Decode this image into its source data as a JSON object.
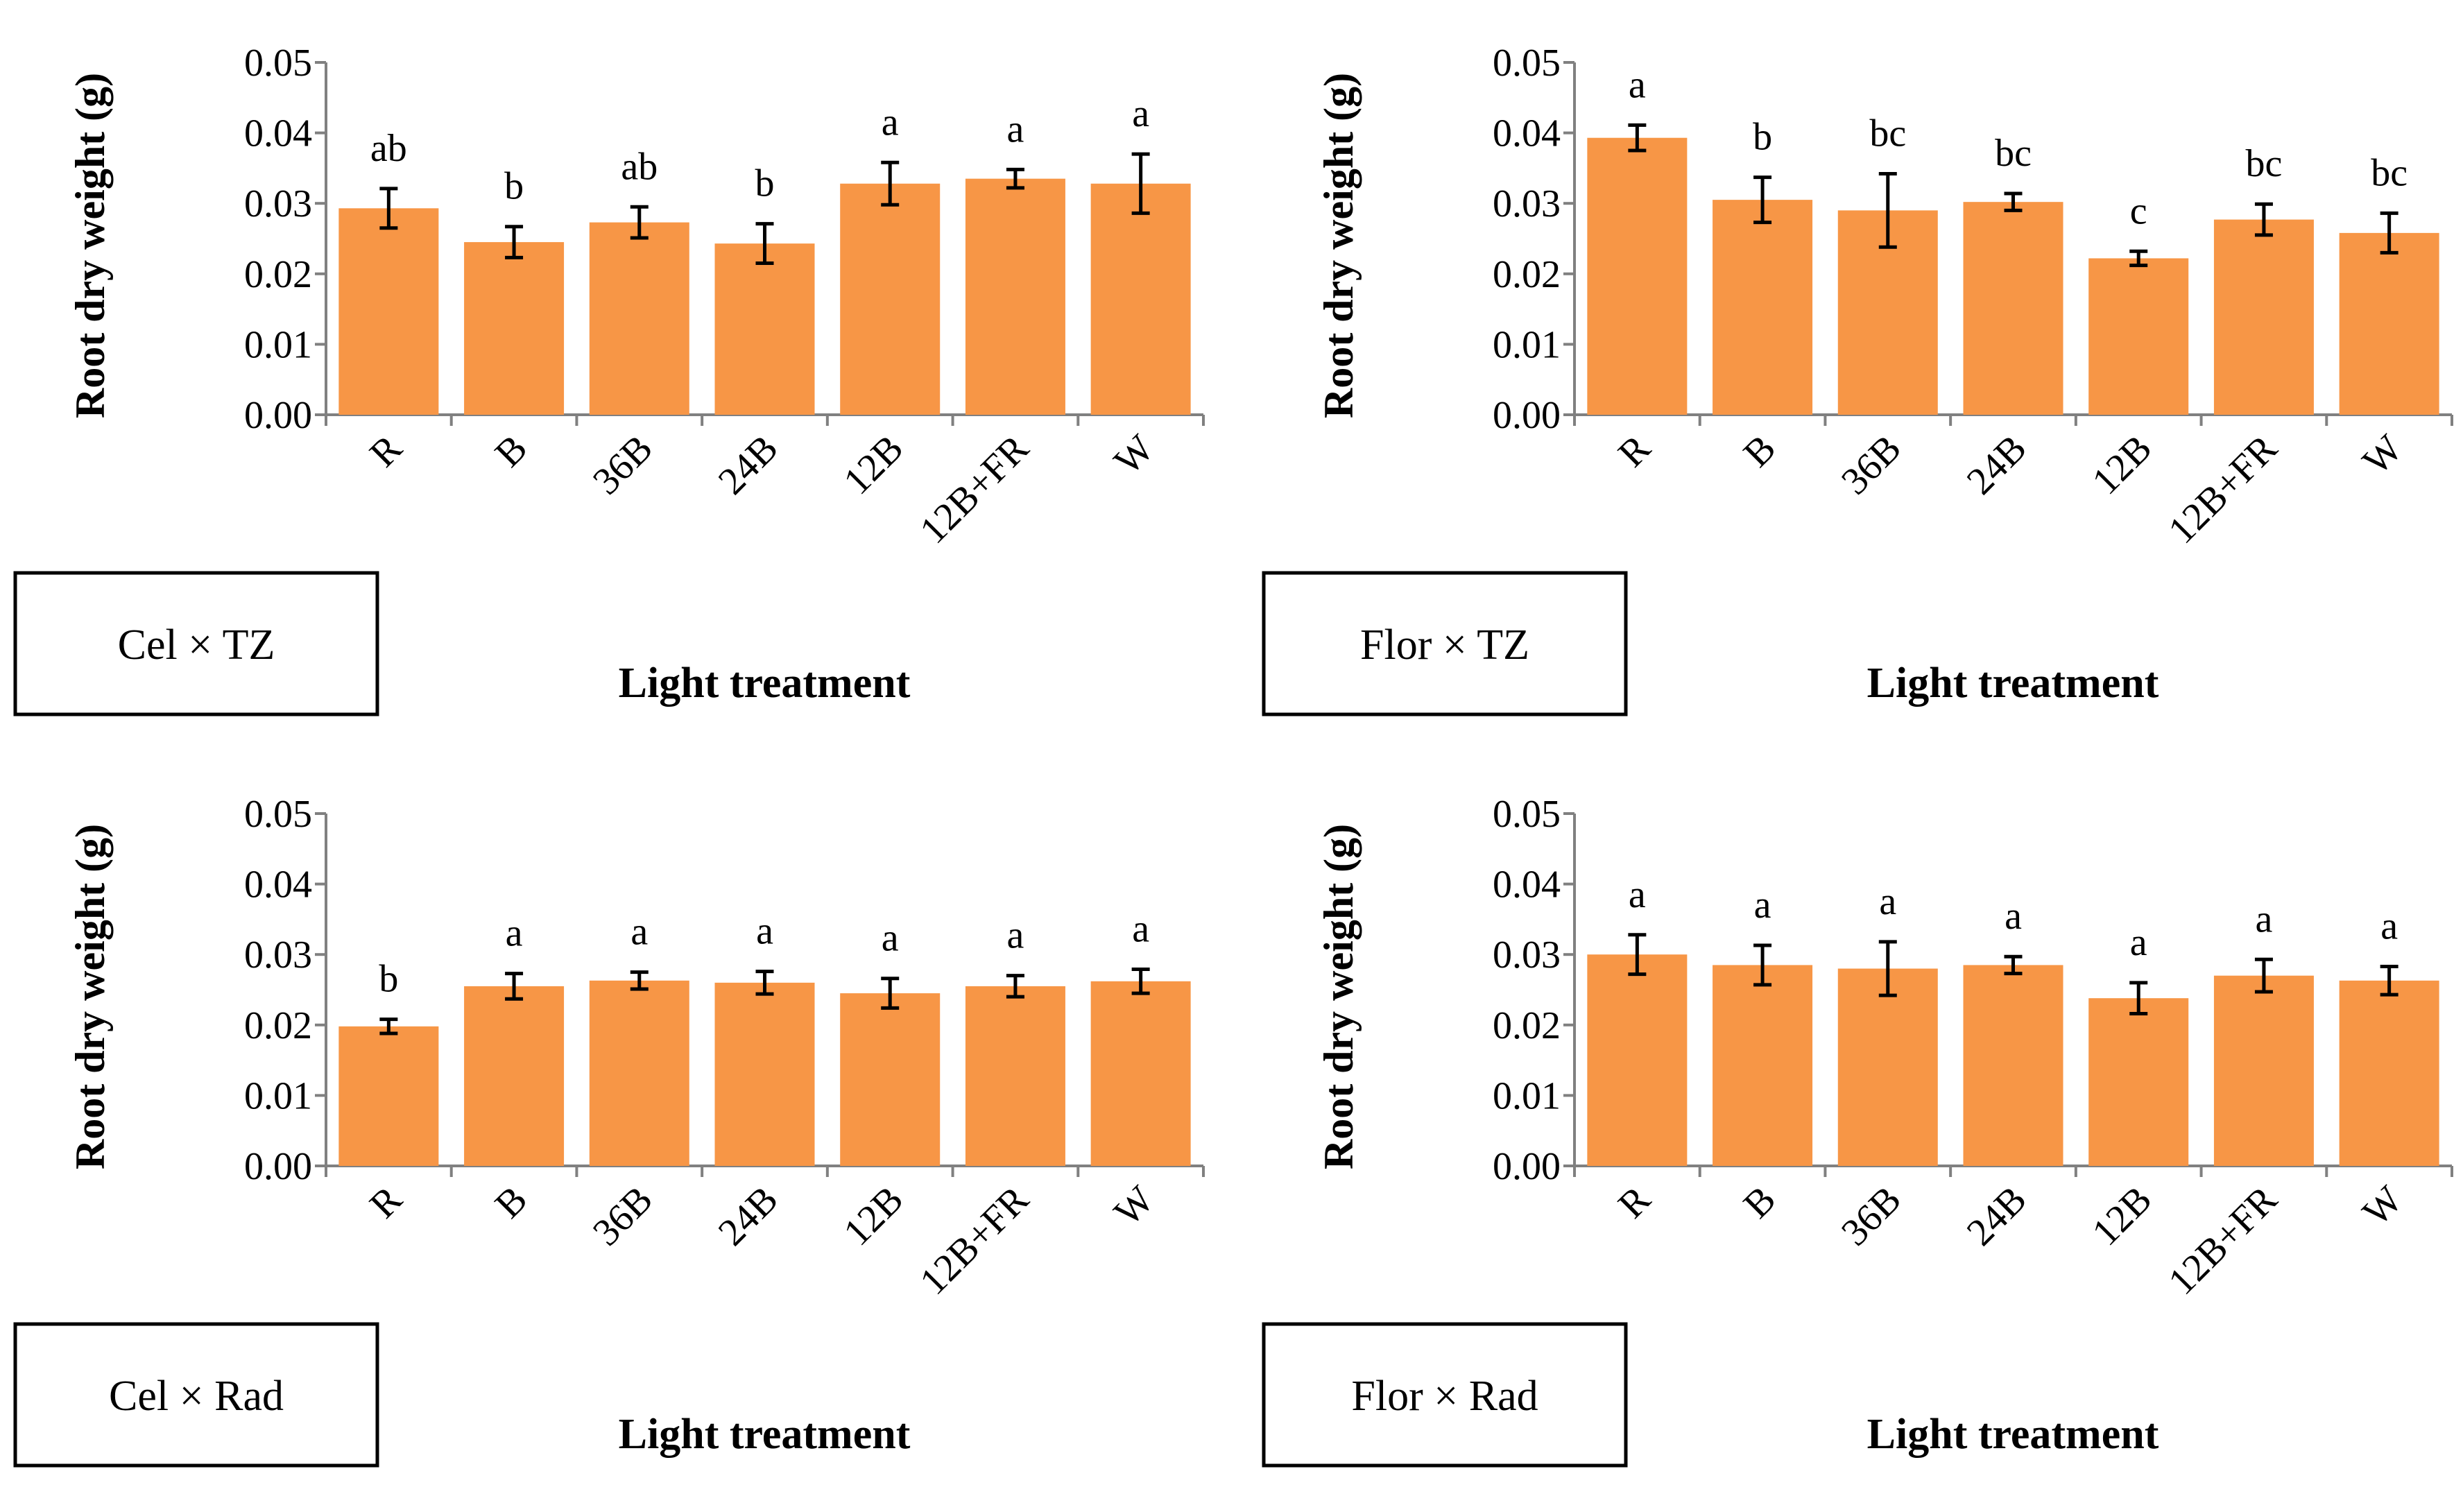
{
  "colors": {
    "bar": "#F79646",
    "axis": "#808080",
    "error_bar": "#000000",
    "text": "#000000"
  },
  "chart_data": [
    {
      "type": "bar",
      "panel_label": "Cel × TZ",
      "xlabel": "Light treatment",
      "ylabel": "Root dry weight (g)",
      "ylim": [
        0,
        0.05
      ],
      "yticks": [
        "0.00",
        "0.01",
        "0.02",
        "0.03",
        "0.04",
        "0.05"
      ],
      "categories": [
        "R",
        "B",
        "36B",
        "24B",
        "12B",
        "12B+FR",
        "W"
      ],
      "values": [
        0.0293,
        0.0245,
        0.0273,
        0.0243,
        0.0328,
        0.0335,
        0.0328
      ],
      "errors": [
        0.0028,
        0.0022,
        0.0022,
        0.0028,
        0.003,
        0.0013,
        0.0042
      ],
      "significance": [
        "ab",
        "b",
        "ab",
        "b",
        "a",
        "a",
        "a"
      ]
    },
    {
      "type": "bar",
      "panel_label": "Flor × TZ",
      "xlabel": "Light treatment",
      "ylabel": "Root dry weight (g)",
      "ylim": [
        0,
        0.05
      ],
      "yticks": [
        "0.00",
        "0.01",
        "0.02",
        "0.03",
        "0.04",
        "0.05"
      ],
      "categories": [
        "R",
        "B",
        "36B",
        "24B",
        "12B",
        "12B+FR",
        "W"
      ],
      "values": [
        0.0393,
        0.0305,
        0.029,
        0.0302,
        0.0222,
        0.0277,
        0.0258
      ],
      "errors": [
        0.0018,
        0.0032,
        0.0052,
        0.0012,
        0.001,
        0.0022,
        0.0028
      ],
      "significance": [
        "a",
        "b",
        "bc",
        "bc",
        "c",
        "bc",
        "bc"
      ]
    },
    {
      "type": "bar",
      "panel_label": "Cel × Rad",
      "xlabel": "Light treatment",
      "ylabel": "Root dry weight (g)",
      "ylim": [
        0,
        0.05
      ],
      "yticks": [
        "0.00",
        "0.01",
        "0.02",
        "0.03",
        "0.04",
        "0.05"
      ],
      "categories": [
        "R",
        "B",
        "36B",
        "24B",
        "12B",
        "12B+FR",
        "W"
      ],
      "values": [
        0.0198,
        0.0255,
        0.0263,
        0.026,
        0.0245,
        0.0255,
        0.0262
      ],
      "errors": [
        0.001,
        0.0018,
        0.0012,
        0.0016,
        0.0021,
        0.0015,
        0.0017
      ],
      "significance": [
        "b",
        "a",
        "a",
        "a",
        "a",
        "a",
        "a"
      ]
    },
    {
      "type": "bar",
      "panel_label": "Flor × Rad",
      "xlabel": "Light treatment",
      "ylabel": "Root dry weight (g)",
      "ylim": [
        0,
        0.05
      ],
      "yticks": [
        "0.00",
        "0.01",
        "0.02",
        "0.03",
        "0.04",
        "0.05"
      ],
      "categories": [
        "R",
        "B",
        "36B",
        "24B",
        "12B",
        "12B+FR",
        "W"
      ],
      "values": [
        0.03,
        0.0285,
        0.028,
        0.0285,
        0.0238,
        0.027,
        0.0263
      ],
      "errors": [
        0.0028,
        0.0028,
        0.0038,
        0.0012,
        0.0022,
        0.0023,
        0.002
      ],
      "significance": [
        "a",
        "a",
        "a",
        "a",
        "a",
        "a",
        "a"
      ]
    }
  ]
}
